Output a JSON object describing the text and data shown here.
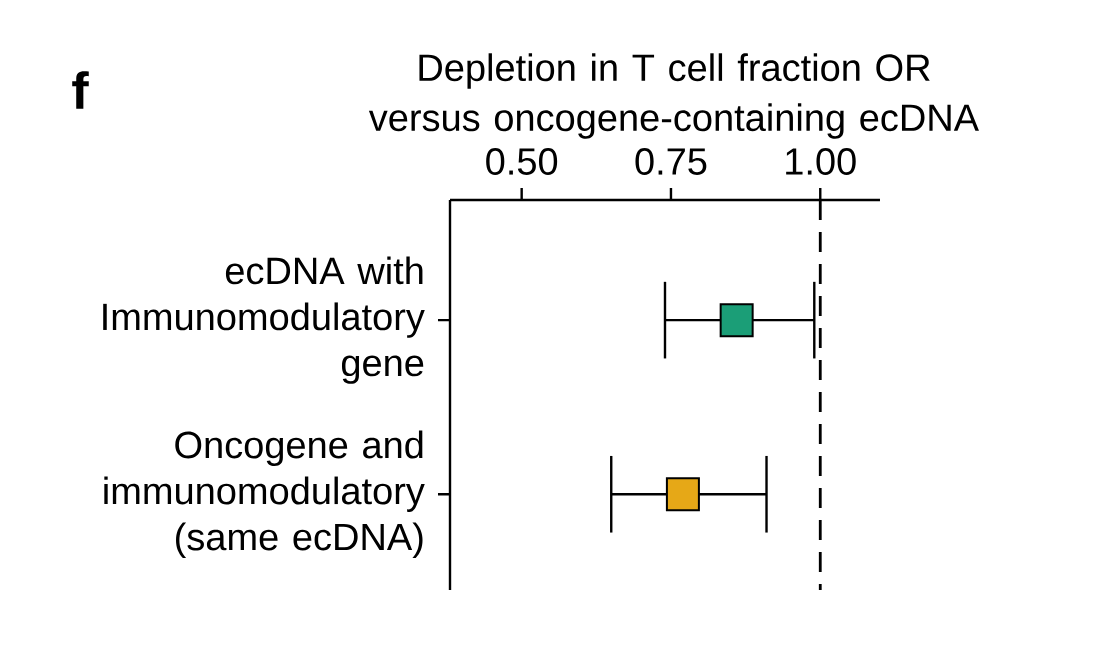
{
  "chart_data": {
    "type": "scatter",
    "orientation": "horizontal",
    "title": "Depletion in T cell fraction OR versus oncogene-containing ecDNA",
    "categories": [
      "ecDNA with Immunomodulatory gene",
      "Oncogene and immunomodulatory (same ecDNA)"
    ],
    "values": [
      0.86,
      0.77
    ],
    "errors": [
      [
        0.74,
        0.99
      ],
      [
        0.65,
        0.91
      ]
    ],
    "colors": [
      "#1b9e77",
      "#e6a817"
    ],
    "marker": "square",
    "xlim": [
      0.38,
      1.1
    ],
    "xticks": [
      {
        "value": 0.5,
        "label": "0.50"
      },
      {
        "value": 0.75,
        "label": "0.75"
      },
      {
        "value": 1.0,
        "label": "1.00"
      }
    ],
    "ref_lines": [
      {
        "axis": "x",
        "value": 1.0,
        "line_style": "dashed"
      }
    ],
    "annotations": [
      "f"
    ]
  }
}
